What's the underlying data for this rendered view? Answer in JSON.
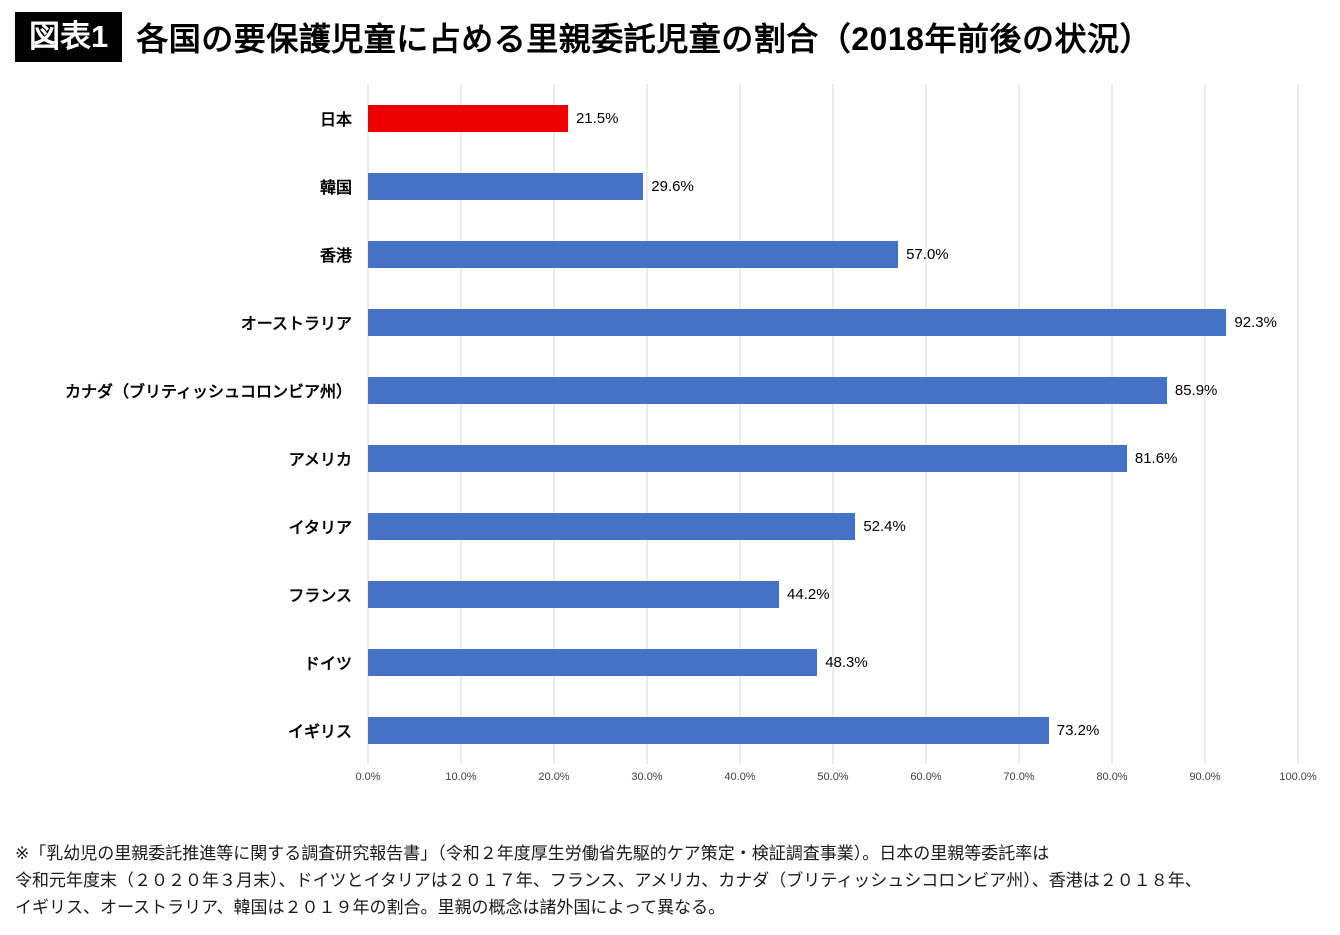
{
  "header": {
    "badge": "図表1",
    "title": "各国の要保護児童に占める里親委託児童の割合（2018年前後の状況）"
  },
  "chart_data": {
    "type": "bar",
    "orientation": "horizontal",
    "title": "各国の要保護児童に占める里親委託児童の割合（2018年前後の状況）",
    "categories": [
      "日本",
      "韓国",
      "香港",
      "オーストラリア",
      "カナダ（ブリティッシュコロンビア州）",
      "アメリカ",
      "イタリア",
      "フランス",
      "ドイツ",
      "イギリス"
    ],
    "values": [
      21.5,
      29.6,
      57.0,
      92.3,
      85.9,
      81.6,
      52.4,
      44.2,
      48.3,
      73.2
    ],
    "value_labels": [
      "21.5%",
      "29.6%",
      "57.0%",
      "92.3%",
      "85.9%",
      "81.6%",
      "52.4%",
      "44.2%",
      "48.3%",
      "73.2%"
    ],
    "bar_colors": [
      "#ee0000",
      "#4472c4",
      "#4472c4",
      "#4472c4",
      "#4472c4",
      "#4472c4",
      "#4472c4",
      "#4472c4",
      "#4472c4",
      "#4472c4"
    ],
    "default_bar_color": "#4472c4",
    "highlight_bar_color": "#ee0000",
    "xlabel": "",
    "ylabel": "",
    "xlim": [
      0,
      100
    ],
    "x_ticks": [
      "0.0%",
      "10.0%",
      "20.0%",
      "30.0%",
      "40.0%",
      "50.0%",
      "60.0%",
      "70.0%",
      "80.0%",
      "90.0%",
      "100.0%"
    ],
    "grid": true,
    "gridline_color": "#d9d9d9",
    "legend": "none"
  },
  "footnote": {
    "lines": [
      "※「乳幼児の里親委託推進等に関する調査研究報告書」（令和２年度厚生労働省先駆的ケア策定・検証調査事業）。日本の里親等委託率は",
      "令和元年度末（２０２０年３月末）、ドイツとイタリアは２０１７年、フランス、アメリカ、カナダ（ブリティッシュシコロンビア州）、香港は２０１８年、",
      "イギリス、オーストラリア、韓国は２０１９年の割合。里親の概念は諸外国によって異なる。"
    ]
  }
}
